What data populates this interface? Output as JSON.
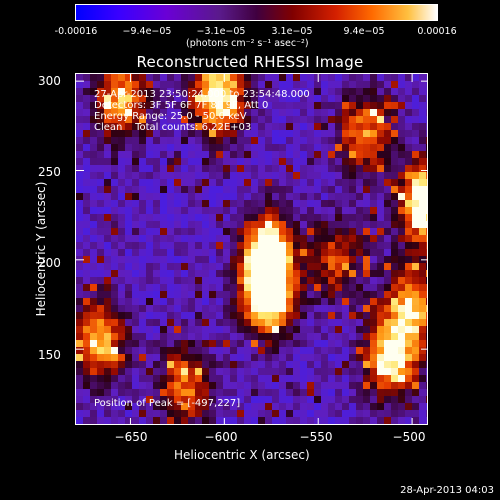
{
  "colorbar": {
    "ticks": [
      "-0.00016",
      "−9.4e−05",
      "−3.1e−05",
      "3.1e−05",
      "9.4e−05",
      "0.00016"
    ],
    "unit": "(photons cm⁻² s⁻¹ asec⁻²)"
  },
  "header": {
    "title": "Reconstructed RHESSI Image"
  },
  "annotations": {
    "time": "27-Apr-2013 23:50:24.000 to 23:54:48.000",
    "detectors": "Detectors: 3F 5F 6F 7F 8F 9F, Att 0",
    "energy": "Energy Range: 25.0 - 50.0 keV",
    "method": "Clean    Total counts: 6.22E+03",
    "peak": "Position of Peak = [-497,227]"
  },
  "footer": {
    "timestamp": "28-Apr-2013 04:03"
  },
  "chart_data": {
    "type": "heatmap",
    "title": "Reconstructed RHESSI Image",
    "xlabel": "Heliocentric X (arcsec)",
    "ylabel": "Heliocentric Y (arcsec)",
    "xlim": [
      -679,
      -491
    ],
    "ylim": [
      107,
      304
    ],
    "x_ticks": [
      -650,
      -600,
      -550,
      -500
    ],
    "y_ticks": [
      150,
      200,
      250,
      300
    ],
    "x_tick_labels": [
      "−650",
      "−600",
      "−550",
      "−500"
    ],
    "y_tick_labels": [
      "150",
      "200",
      "250",
      "300"
    ],
    "colorscale_range": [
      -0.00016,
      0.00016
    ],
    "peak": [
      -497,
      227
    ],
    "bright_regions": [
      {
        "x": -577,
        "y": 180,
        "level": 1.0
      },
      {
        "x": -577,
        "y": 205,
        "level": 0.85
      },
      {
        "x": -493,
        "y": 232,
        "level": 1.0
      },
      {
        "x": -667,
        "y": 155,
        "level": 0.75
      },
      {
        "x": -603,
        "y": 292,
        "level": 0.9
      },
      {
        "x": -511,
        "y": 145,
        "level": 0.85
      },
      {
        "x": -655,
        "y": 290,
        "level": 0.7
      },
      {
        "x": -525,
        "y": 272,
        "level": 0.6
      },
      {
        "x": -540,
        "y": 200,
        "level": 0.5
      },
      {
        "x": -620,
        "y": 130,
        "level": 0.6
      },
      {
        "x": -500,
        "y": 175,
        "level": 0.7
      }
    ]
  }
}
